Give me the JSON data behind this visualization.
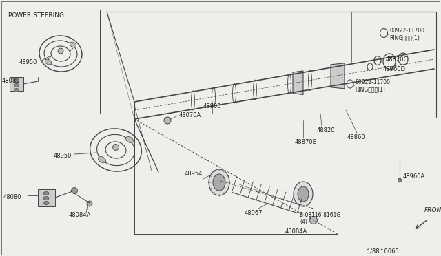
{
  "bg_color": "#f0eeeb",
  "line_color": "#444444",
  "text_color": "#222222",
  "figsize": [
    6.4,
    3.72
  ],
  "dpi": 100,
  "labels": {
    "power_steering": "POWER STEERING",
    "48950_a": "48950",
    "48950_b": "48950",
    "48080_a": "48080",
    "48080_b": "48080",
    "48070A": "48070A",
    "48805": "48805",
    "48820": "48820",
    "48870E": "48870E",
    "48860": "48860",
    "48954": "48954",
    "48967": "48967",
    "48084A_a": "48084A",
    "48084A_b": "48084A",
    "48960A": "48960A",
    "48960D": "48960D",
    "48820C": "48820C",
    "ring_top": "00922-11700\nRINGリング(1)",
    "ring_bot": "00922-11700\nRINGリング(1)",
    "bolt": "B 08116-8161G\n(4)",
    "front": "FRONT",
    "partnum": "^/88^0065"
  }
}
